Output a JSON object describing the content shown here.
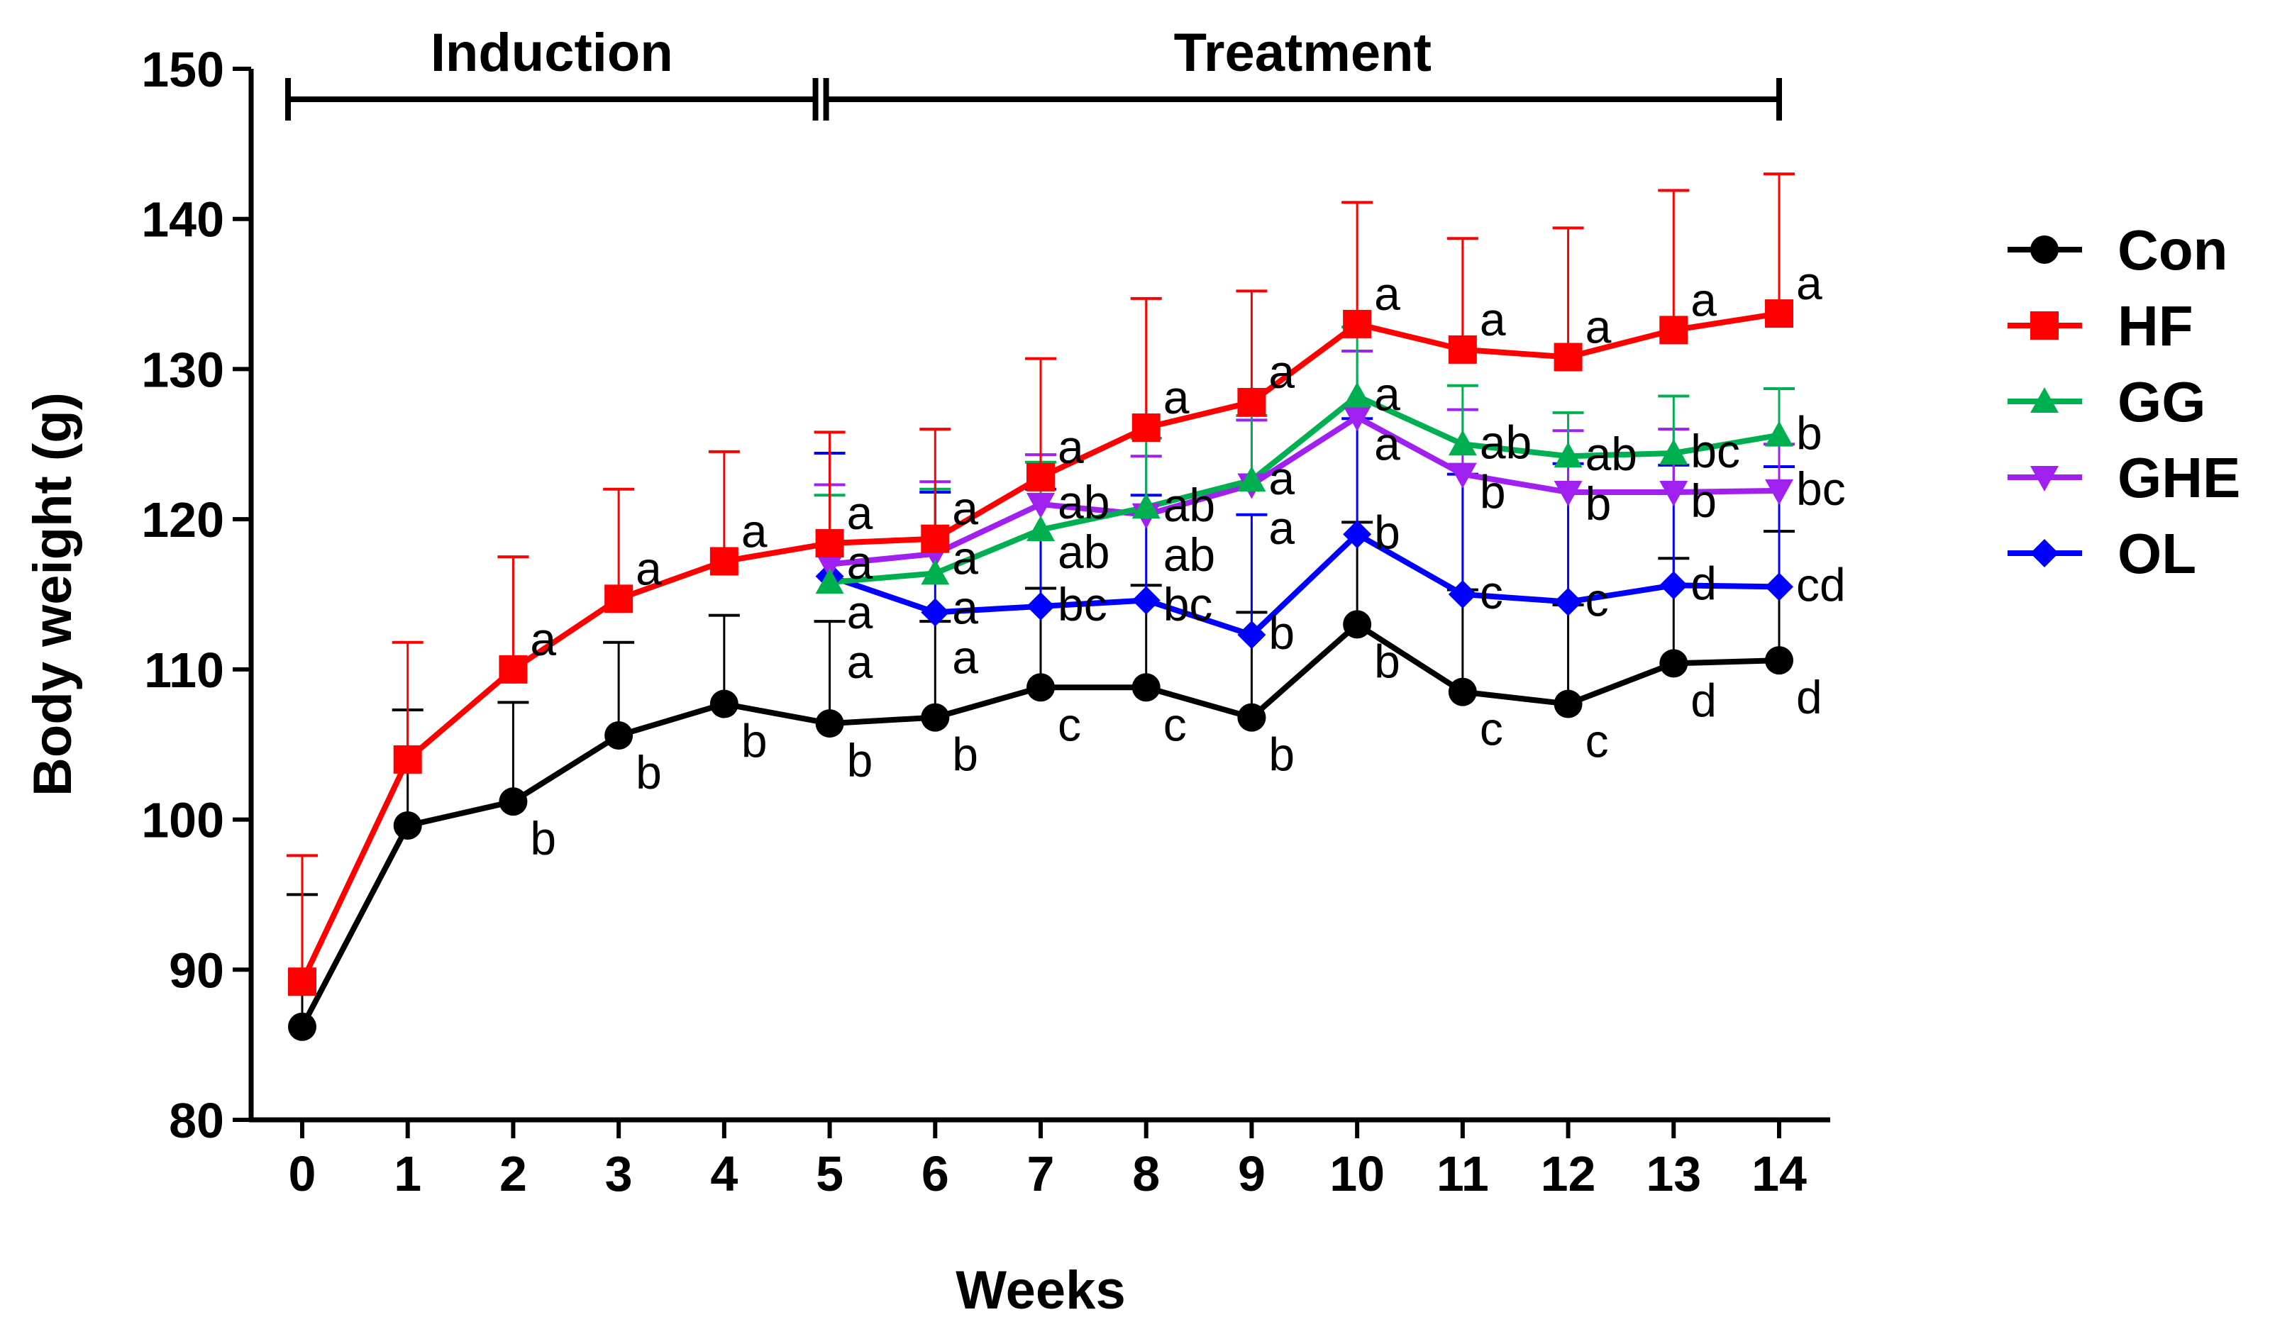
{
  "chart_data": {
    "type": "line",
    "title": "",
    "xlabel": "Weeks",
    "ylabel": "Body weight (g)",
    "xlim": [
      0,
      14
    ],
    "ylim": [
      80,
      150
    ],
    "x_ticks": [
      0,
      1,
      2,
      3,
      4,
      5,
      6,
      7,
      8,
      9,
      10,
      11,
      12,
      13,
      14
    ],
    "y_ticks": [
      80,
      90,
      100,
      110,
      120,
      130,
      140,
      150
    ],
    "phases": [
      {
        "label": "Induction",
        "from": 0,
        "to": 5
      },
      {
        "label": "Treatment",
        "from": 5,
        "to": 14
      }
    ],
    "legend_position": "right",
    "series": [
      {
        "name": "Con",
        "color": "#000000",
        "marker": "circle",
        "x": [
          0,
          1,
          2,
          3,
          4,
          5,
          6,
          7,
          8,
          9,
          10,
          11,
          12,
          13,
          14
        ],
        "values": [
          86.2,
          99.6,
          101.2,
          105.6,
          107.7,
          106.4,
          106.8,
          108.8,
          108.8,
          106.8,
          113.0,
          108.5,
          107.7,
          110.4,
          110.6
        ],
        "sd": [
          8.8,
          7.7,
          6.6,
          6.2,
          5.9,
          6.8,
          6.4,
          6.6,
          6.8,
          7.0,
          6.8,
          6.8,
          6.6,
          7.0,
          8.6
        ],
        "letters": [
          "",
          "",
          "b",
          "b",
          "b",
          "b",
          "b",
          "c",
          "c",
          "b",
          "b",
          "c",
          "c",
          "d",
          "d"
        ]
      },
      {
        "name": "HF",
        "color": "#ff0000",
        "marker": "square",
        "x": [
          0,
          1,
          2,
          3,
          4,
          5,
          6,
          7,
          8,
          9,
          10,
          11,
          12,
          13,
          14
        ],
        "values": [
          89.2,
          104.0,
          110.0,
          114.7,
          117.2,
          118.4,
          118.7,
          122.8,
          126.1,
          127.8,
          133.0,
          131.3,
          130.8,
          132.6,
          133.7
        ],
        "sd": [
          8.4,
          7.8,
          7.5,
          7.3,
          7.3,
          7.4,
          7.3,
          7.9,
          8.6,
          7.4,
          8.1,
          7.4,
          8.6,
          9.3,
          9.3
        ],
        "letters": [
          "",
          "",
          "a",
          "a",
          "a",
          "a",
          "a",
          "a",
          "a",
          "a",
          "a",
          "a",
          "a",
          "a",
          "a"
        ]
      },
      {
        "name": "GG",
        "color": "#00b050",
        "marker": "triangle-up",
        "x": [
          5,
          6,
          7,
          8,
          9,
          10,
          11,
          12,
          13,
          14
        ],
        "values": [
          115.8,
          116.4,
          119.3,
          120.8,
          122.6,
          128.2,
          125.0,
          124.2,
          124.4,
          125.6
        ],
        "sd": [
          5.8,
          5.6,
          4.5,
          4.6,
          4.3,
          4.6,
          3.9,
          2.9,
          3.8,
          3.1
        ],
        "letters": [
          "a",
          "a",
          "ab",
          "ab",
          "a",
          "a",
          "ab",
          "ab",
          "bc",
          "b"
        ]
      },
      {
        "name": "GHE",
        "color": "#a020f0",
        "marker": "triangle-down",
        "x": [
          5,
          6,
          7,
          8,
          9,
          10,
          11,
          12,
          13,
          14
        ],
        "values": [
          117.0,
          117.7,
          121.0,
          120.3,
          122.3,
          126.8,
          123.0,
          121.8,
          121.8,
          121.9
        ],
        "sd": [
          5.3,
          4.8,
          3.3,
          3.9,
          4.3,
          4.4,
          4.3,
          4.1,
          4.2,
          3.1
        ],
        "letters": [
          "a",
          "a",
          "ab",
          "ab",
          "a",
          "a",
          "b",
          "b",
          "b",
          "bc"
        ]
      },
      {
        "name": "OL",
        "color": "#0000ff",
        "marker": "diamond",
        "x": [
          5,
          6,
          7,
          8,
          9,
          10,
          11,
          12,
          13,
          14
        ],
        "values": [
          116.2,
          113.8,
          114.2,
          114.6,
          112.3,
          119.0,
          115.0,
          114.5,
          115.6,
          115.5
        ],
        "sd": [
          8.2,
          8.0,
          7.8,
          7.0,
          8.0,
          7.7,
          8.0,
          9.2,
          8.0,
          8.0
        ],
        "letters": [
          "a",
          "a",
          "bc",
          "bc",
          "b",
          "b",
          "c",
          "c",
          "d",
          "cd"
        ]
      }
    ]
  }
}
